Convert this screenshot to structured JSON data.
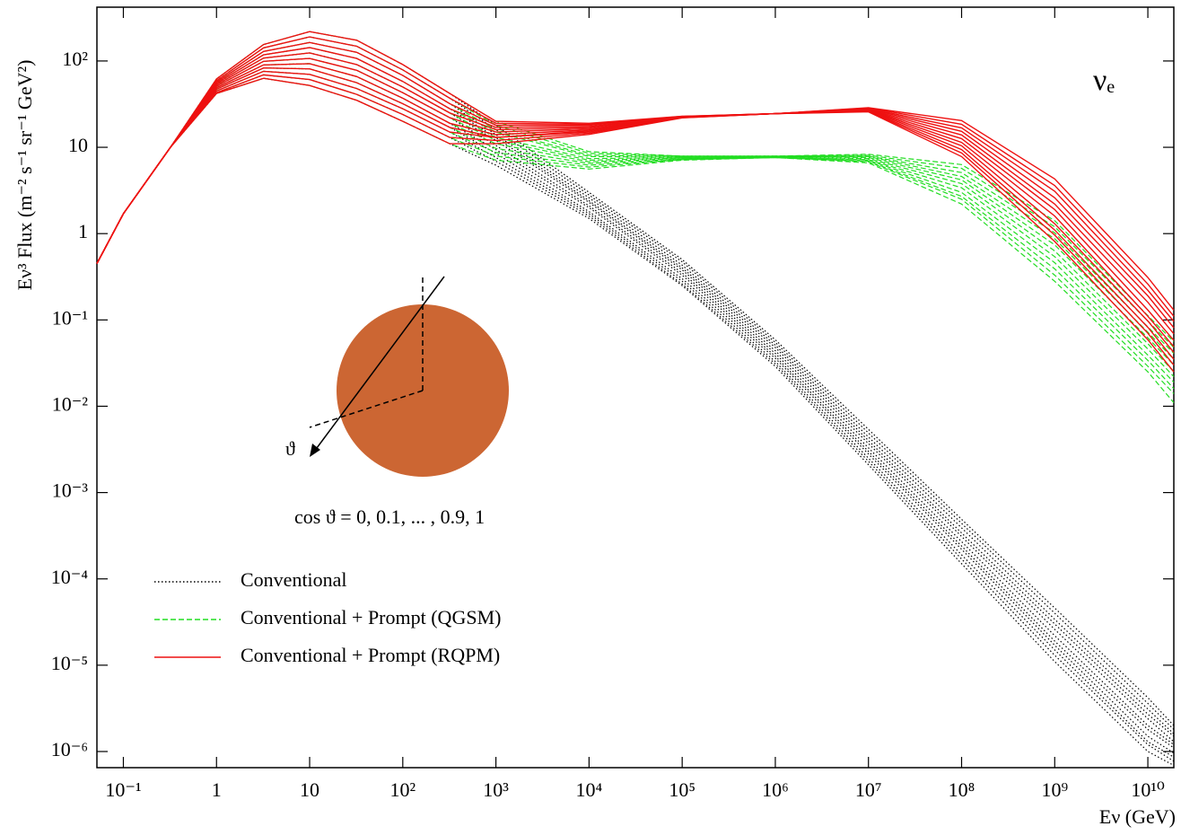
{
  "chart_data": {
    "type": "line",
    "xlabel": "Eν (GeV)",
    "ylabel": "Eν³ Flux  (m⁻² s⁻¹ sr⁻¹ GeV²)",
    "annotations": [
      "νₑ",
      "ϑ",
      "cos ϑ = 0, 0.1, ... , 0.9, 1"
    ],
    "xscale": "log",
    "yscale": "log",
    "xlim": [
      0.052,
      19000000000.0
    ],
    "ylim": [
      6.5e-07,
      420
    ],
    "xticks": [
      {
        "value": 0.1,
        "label": "10⁻¹"
      },
      1,
      10,
      {
        "value": 100,
        "label": "10²"
      },
      {
        "value": 1000,
        "label": "10³"
      },
      {
        "value": 10000,
        "label": "10⁴"
      },
      {
        "value": 100000,
        "label": "10⁵"
      },
      {
        "value": 1000000,
        "label": "10⁶"
      },
      {
        "value": 10000000,
        "label": "10⁷"
      },
      {
        "value": 100000000,
        "label": "10⁸"
      },
      {
        "value": 1000000000,
        "label": "10⁹"
      },
      {
        "value": 10000000000,
        "label": "10¹⁰"
      }
    ],
    "yticks": [
      {
        "value": 1e-06,
        "label": "10⁻⁶"
      },
      {
        "value": 1e-05,
        "label": "10⁻⁵"
      },
      {
        "value": 0.0001,
        "label": "10⁻⁴"
      },
      {
        "value": 0.001,
        "label": "10⁻³"
      },
      {
        "value": 0.01,
        "label": "10⁻²"
      },
      {
        "value": 0.1,
        "label": "10⁻¹"
      },
      1,
      10,
      {
        "value": 100,
        "label": "10²"
      }
    ],
    "legend": "lower left",
    "x": [
      0.052,
      0.1,
      0.32,
      1,
      3.2,
      10,
      32,
      100,
      320,
      1000,
      10000,
      100000,
      1000000,
      10000000,
      100000000,
      1000000000,
      10000000000,
      19000000000
    ],
    "series": [
      {
        "name": "Conventional",
        "color": "#000000",
        "dash": "dotted",
        "values": [
          [
            0.45,
            1.7,
            10,
            62,
            155,
            219,
            174,
            91,
            42,
            18,
            3.0,
            0.5,
            0.059,
            0.0054,
            0.00049,
            4.6e-05,
            4.2e-06,
            2e-06
          ],
          [
            0.45,
            1.7,
            10,
            59,
            142,
            190,
            148,
            79,
            37,
            16,
            2.8,
            0.47,
            0.055,
            0.0049,
            0.00044,
            4e-05,
            3.6e-06,
            1.8e-06
          ],
          [
            0.45,
            1.7,
            10,
            57,
            129,
            164,
            126,
            68,
            32,
            14,
            2.6,
            0.43,
            0.051,
            0.0044,
            0.00039,
            3.4e-05,
            3.1e-06,
            1.6e-06
          ],
          [
            0.45,
            1.7,
            10,
            55,
            118,
            143,
            107,
            58,
            28,
            13,
            2.4,
            0.4,
            0.048,
            0.004,
            0.00034,
            3e-05,
            2.7e-06,
            1.5e-06
          ],
          [
            0.45,
            1.7,
            10,
            53,
            108,
            124,
            91,
            50,
            25,
            12,
            2.3,
            0.38,
            0.044,
            0.0037,
            0.00031,
            2.6e-05,
            2.4e-06,
            1.3e-06
          ],
          [
            0.45,
            1.7,
            10,
            51,
            99,
            107,
            78,
            43,
            22,
            10.5,
            2.1,
            0.35,
            0.041,
            0.0033,
            0.00027,
            2.2e-05,
            2e-06,
            1.2e-06
          ],
          [
            0.45,
            1.7,
            10,
            49,
            90,
            93,
            66,
            37,
            19,
            9.4,
            2.0,
            0.33,
            0.038,
            0.003,
            0.00024,
            1.9e-05,
            1.8e-06,
            1.1e-06
          ],
          [
            0.45,
            1.7,
            10,
            47,
            83,
            81,
            56,
            32,
            17,
            8.5,
            1.8,
            0.3,
            0.036,
            0.0028,
            0.00022,
            1.7e-05,
            1.5e-06,
            9.6e-07
          ],
          [
            0.45,
            1.7,
            10,
            45,
            76,
            70,
            48,
            28,
            15,
            7.6,
            1.7,
            0.28,
            0.033,
            0.0025,
            0.00019,
            1.5e-05,
            1.3e-06,
            8.6e-07
          ],
          [
            0.45,
            1.7,
            10,
            43,
            69,
            61,
            41,
            24,
            13,
            6.9,
            1.6,
            0.26,
            0.031,
            0.0023,
            0.00017,
            1.3e-05,
            1.2e-06,
            7.7e-07
          ],
          [
            0.45,
            1.7,
            10,
            42,
            63,
            52,
            35,
            20,
            11,
            6.2,
            1.5,
            0.25,
            0.029,
            0.0021,
            0.00015,
            1.1e-05,
            1e-06,
            6.9e-07
          ]
        ]
      },
      {
        "name": "Conventional + Prompt (QGSM)",
        "color": "#22dd22",
        "dash": "dashed",
        "values": [
          [
            0.45,
            1.7,
            10,
            62,
            155,
            219,
            174,
            91,
            42,
            20,
            8.9,
            7.9,
            7.9,
            8.3,
            6.3,
            1.41,
            0.112,
            0.056
          ],
          [
            0.45,
            1.7,
            10,
            59,
            142,
            190,
            148,
            79,
            37,
            18,
            8.5,
            7.9,
            7.9,
            8.1,
            5.7,
            1.2,
            0.097,
            0.048
          ],
          [
            0.45,
            1.7,
            10,
            57,
            129,
            164,
            126,
            68,
            32,
            16,
            8.1,
            7.8,
            7.9,
            7.9,
            5.1,
            1.02,
            0.083,
            0.041
          ],
          [
            0.45,
            1.7,
            10,
            55,
            118,
            143,
            107,
            58,
            28,
            15,
            7.8,
            7.7,
            7.8,
            7.8,
            4.6,
            0.87,
            0.072,
            0.035
          ],
          [
            0.45,
            1.7,
            10,
            53,
            108,
            124,
            91,
            50,
            25,
            13,
            7.4,
            7.6,
            7.8,
            7.6,
            4.2,
            0.74,
            0.062,
            0.03
          ],
          [
            0.45,
            1.7,
            10,
            51,
            99,
            107,
            78,
            43,
            22,
            12,
            7.1,
            7.5,
            7.7,
            7.4,
            3.8,
            0.63,
            0.053,
            0.025
          ],
          [
            0.45,
            1.7,
            10,
            49,
            90,
            93,
            66,
            37,
            19,
            11,
            6.8,
            7.4,
            7.7,
            7.2,
            3.4,
            0.54,
            0.046,
            0.022
          ],
          [
            0.45,
            1.7,
            10,
            47,
            83,
            81,
            56,
            32,
            17,
            9.7,
            6.5,
            7.3,
            7.6,
            7.1,
            3.0,
            0.46,
            0.039,
            0.019
          ],
          [
            0.45,
            1.7,
            10,
            45,
            76,
            70,
            48,
            28,
            15,
            8.7,
            6.2,
            7.2,
            7.6,
            6.9,
            2.7,
            0.39,
            0.034,
            0.016
          ],
          [
            0.45,
            1.7,
            10,
            43,
            69,
            61,
            41,
            24,
            13,
            7.9,
            5.9,
            7.2,
            7.6,
            6.8,
            2.5,
            0.33,
            0.029,
            0.014
          ],
          [
            0.45,
            1.7,
            10,
            42,
            63,
            52,
            35,
            20,
            11,
            7.1,
            5.6,
            7.1,
            7.6,
            6.6,
            2.2,
            0.28,
            0.025,
            0.011
          ]
        ]
      },
      {
        "name": "Conventional + Prompt (RQPM)",
        "color": "#ee1111",
        "dash": "solid",
        "values": [
          [
            0.45,
            1.7,
            10,
            62,
            155,
            219,
            174,
            91,
            42,
            20,
            19,
            22.9,
            24.5,
            28.8,
            20.4,
            4.3,
            0.31,
            0.13
          ],
          [
            0.45,
            1.7,
            10,
            59,
            142,
            190,
            148,
            79,
            37,
            19,
            18.5,
            22.8,
            24.5,
            28.5,
            18.5,
            3.6,
            0.26,
            0.11
          ],
          [
            0.45,
            1.7,
            10,
            57,
            129,
            164,
            126,
            68,
            32,
            18,
            18,
            22.7,
            24.5,
            28.2,
            16.8,
            3.1,
            0.22,
            0.096
          ],
          [
            0.45,
            1.7,
            10,
            55,
            118,
            143,
            107,
            58,
            28,
            17,
            17.4,
            22.6,
            24.5,
            27.9,
            15.3,
            2.6,
            0.19,
            0.081
          ],
          [
            0.45,
            1.7,
            10,
            53,
            108,
            124,
            91,
            50,
            25,
            16,
            16.9,
            22.5,
            24.5,
            27.5,
            13.9,
            2.2,
            0.16,
            0.069
          ],
          [
            0.45,
            1.7,
            10,
            51,
            99,
            107,
            78,
            43,
            22,
            15,
            16.4,
            22.4,
            24.5,
            27.2,
            12.6,
            1.9,
            0.13,
            0.058
          ],
          [
            0.45,
            1.7,
            10,
            49,
            90,
            93,
            66,
            37,
            19,
            14,
            15.9,
            22.3,
            24.5,
            26.9,
            11.4,
            1.6,
            0.11,
            0.049
          ],
          [
            0.45,
            1.7,
            10,
            47,
            83,
            81,
            56,
            32,
            17,
            13,
            15.5,
            22.2,
            24.5,
            26.6,
            10.4,
            1.3,
            0.097,
            0.042
          ],
          [
            0.45,
            1.7,
            10,
            45,
            76,
            70,
            48,
            28,
            15,
            13,
            15,
            22.1,
            24.5,
            26.3,
            9.4,
            1.1,
            0.082,
            0.035
          ],
          [
            0.45,
            1.7,
            10,
            43,
            69,
            61,
            41,
            24,
            13,
            12,
            14.6,
            22.0,
            24.5,
            26.0,
            8.6,
            0.96,
            0.07,
            0.03
          ],
          [
            0.45,
            1.7,
            10,
            42,
            63,
            52,
            35,
            20,
            11,
            11,
            14.1,
            21.9,
            24.5,
            25.7,
            7.8,
            0.81,
            0.059,
            0.025
          ]
        ]
      }
    ]
  }
}
